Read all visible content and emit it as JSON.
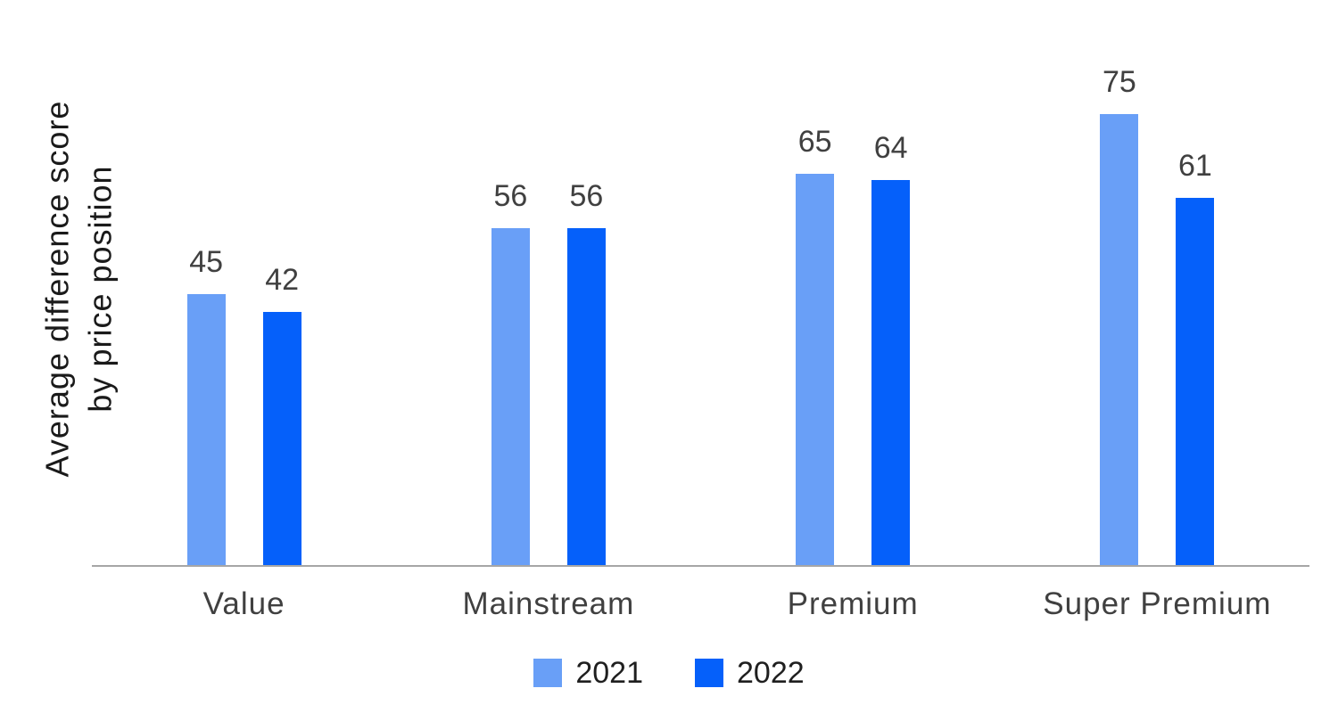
{
  "chart_data": {
    "type": "bar",
    "title": "",
    "ylabel": "Average difference score by price position",
    "ylabel_lines": [
      "Average difference score",
      "by price position"
    ],
    "xlabel": "",
    "categories": [
      "Value",
      "Mainstream",
      "Premium",
      "Super Premium"
    ],
    "series": [
      {
        "name": "2021",
        "color": "#699ff7",
        "values": [
          45,
          56,
          65,
          75
        ]
      },
      {
        "name": "2022",
        "color": "#0560fa",
        "values": [
          42,
          56,
          64,
          61
        ]
      }
    ],
    "ylim": [
      0,
      85
    ],
    "grid": false,
    "y_axis_ticks_visible": false,
    "legend_position": "bottom",
    "data_labels_visible": true,
    "colors": {
      "background": "#ffffff",
      "axis_line": "#a6a6a6",
      "value_and_category_labels": "#404040",
      "legend_text": "#1f1f1f",
      "ylabel_text": "#1a1a1a"
    }
  }
}
